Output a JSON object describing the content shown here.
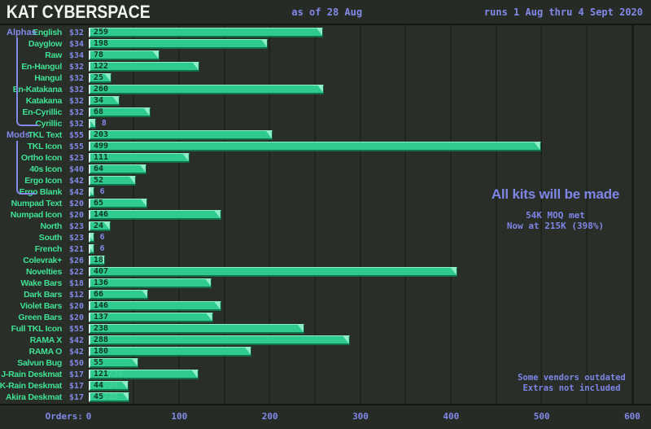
{
  "header": {
    "title": "KAT CYBERSPACE",
    "as_of": "as of 28 Aug",
    "runs": "runs 1 Aug thru 4 Sept 2020"
  },
  "annotations": {
    "main": "All kits will be made",
    "sub_line1": "54K MOQ met",
    "sub_line2": "Now at 215K (398%)",
    "note_line1": "Some vendors outdated",
    "note_line2": "Extras not included"
  },
  "axis": {
    "label": "Orders:",
    "ticks": [
      0,
      100,
      200,
      300,
      400,
      500,
      600
    ],
    "minor_gridline_step": 50,
    "max": 600
  },
  "colors": {
    "background": "#2a2e29",
    "bar_green": "#2fca8e",
    "label_green": "#3fe294",
    "accent_purple": "#8289e8",
    "title_white": "#f1f5ee",
    "gridline": "#1c201b"
  },
  "chart_data": {
    "type": "bar",
    "orientation": "horizontal",
    "title": "KAT CYBERSPACE",
    "xlabel": "Orders:",
    "xlim": [
      0,
      611
    ],
    "grid": true,
    "legend": false,
    "groups": [
      {
        "name": "Alphas",
        "items": [
          {
            "label": "English",
            "price": "$32",
            "value": 259,
            "suffix": ""
          },
          {
            "label": "Dayglow",
            "price": "$34",
            "value": 198,
            "suffix": ""
          },
          {
            "label": "Raw",
            "price": "$34",
            "value": 78,
            "suffix": ""
          },
          {
            "label": "En-Hangul",
            "price": "$32",
            "value": 122,
            "suffix": ""
          },
          {
            "label": "Hangul",
            "price": "$32",
            "value": 25,
            "suffix": ""
          },
          {
            "label": "En-Katakana",
            "price": "$32",
            "value": 260,
            "suffix": ""
          },
          {
            "label": "Katakana",
            "price": "$32",
            "value": 34,
            "suffix": ""
          },
          {
            "label": "En-Cyrillic",
            "price": "$32",
            "value": 68,
            "suffix": ""
          },
          {
            "label": "Cyrillic",
            "price": "$32",
            "value": 8,
            "suffix": ""
          }
        ]
      },
      {
        "name": "Mods",
        "items": [
          {
            "label": "TKL Text",
            "price": "$55",
            "value": 203,
            "suffix": ""
          },
          {
            "label": "TKL Icon",
            "price": "$55",
            "value": 499,
            "suffix": ""
          },
          {
            "label": "Ortho Icon",
            "price": "$23",
            "value": 111,
            "suffix": ""
          },
          {
            "label": "40s Icon",
            "price": "$40",
            "value": 64,
            "suffix": ""
          },
          {
            "label": "Ergo Icon",
            "price": "$42",
            "value": 52,
            "suffix": ""
          },
          {
            "label": "Ergo Blank",
            "price": "$42",
            "value": 6,
            "suffix": ""
          }
        ]
      },
      {
        "name": "",
        "items": [
          {
            "label": "Numpad Text",
            "price": "$20",
            "value": 65,
            "suffix": ""
          },
          {
            "label": "Numpad Icon",
            "price": "$20",
            "value": 146,
            "suffix": ""
          },
          {
            "label": "North",
            "price": "$23",
            "value": 24,
            "suffix": ""
          },
          {
            "label": "South",
            "price": "$23",
            "value": 6,
            "suffix": ""
          },
          {
            "label": "French",
            "price": "$21",
            "value": 6,
            "suffix": ""
          },
          {
            "label": "Colevrak+",
            "price": "$26",
            "value": 18,
            "suffix": ""
          },
          {
            "label": "Novelties",
            "price": "$22",
            "value": 407,
            "suffix": ""
          },
          {
            "label": "Wake Bars",
            "price": "$18",
            "value": 136,
            "suffix": ""
          },
          {
            "label": "Dark Bars",
            "price": "$12",
            "value": 66,
            "suffix": ""
          },
          {
            "label": "Violet Bars",
            "price": "$20",
            "value": 146,
            "suffix": ""
          },
          {
            "label": "Green Bars",
            "price": "$20",
            "value": 137,
            "suffix": ""
          },
          {
            "label": "Full TKL Icon",
            "price": "$55",
            "value": 238,
            "suffix": ""
          },
          {
            "label": "RAMA X",
            "price": "$42",
            "value": 288,
            "suffix": ""
          },
          {
            "label": "RAMA O",
            "price": "$42",
            "value": 180,
            "suffix": ""
          },
          {
            "label": "Salvun Bug",
            "price": "$50",
            "value": 55,
            "suffix": ""
          },
          {
            "label": "J-Rain Deskmat",
            "price": "$17",
            "value": 121,
            "suffix": "/20"
          },
          {
            "label": "K-Rain Deskmat",
            "price": "$17",
            "value": 44,
            "suffix": "/20"
          },
          {
            "label": "Akira Deskmat",
            "price": "$17",
            "value": 45,
            "suffix": "/20"
          }
        ]
      }
    ]
  }
}
